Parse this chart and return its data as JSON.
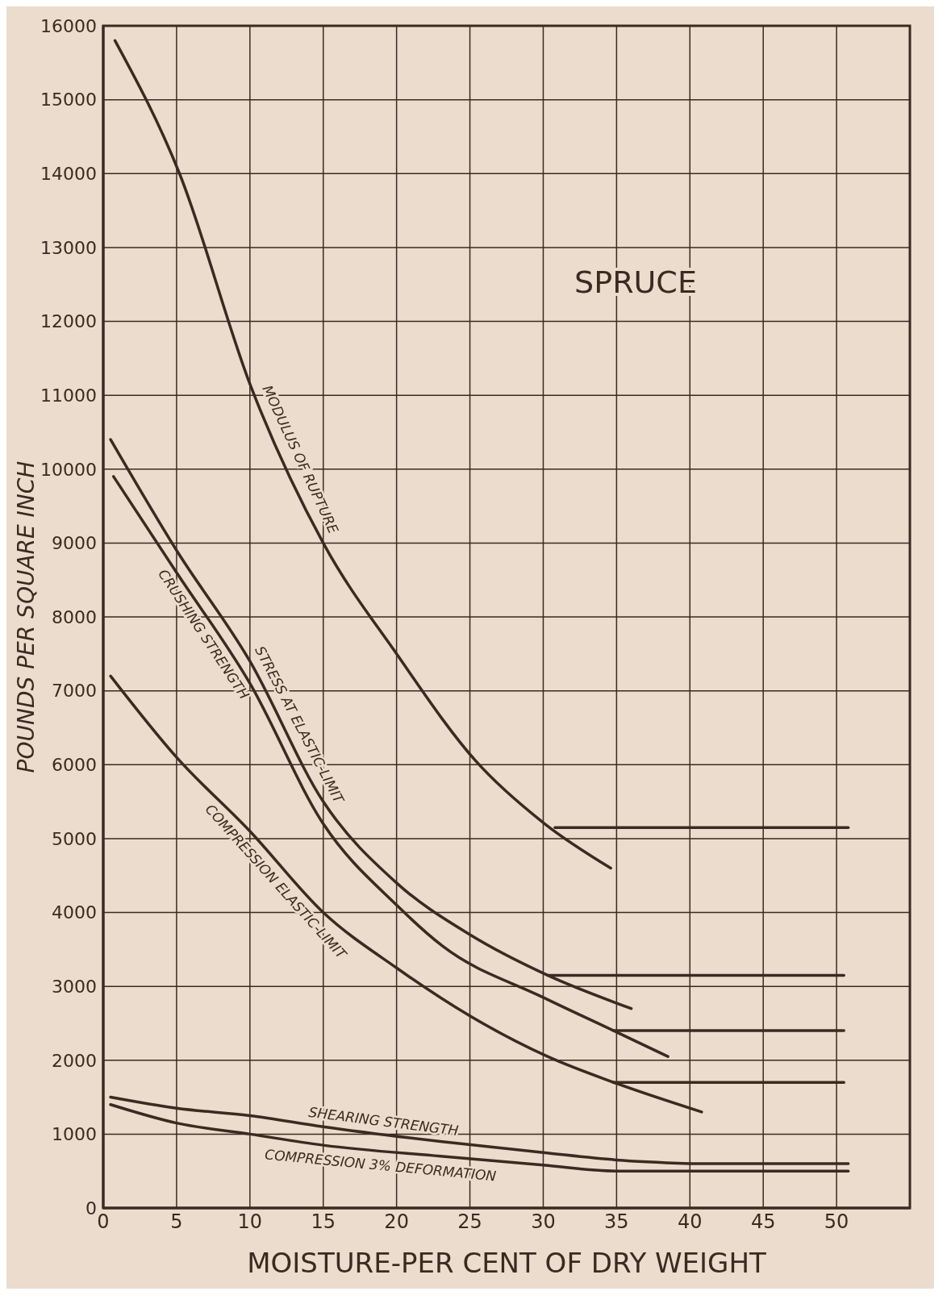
{
  "chart_data": {
    "type": "line",
    "title": "SPRUCE",
    "xlabel": "MOISTURE-PER CENT OF DRY WEIGHT",
    "ylabel": "POUNDS PER SQUARE INCH",
    "xlim": [
      0,
      55
    ],
    "xticks": [
      0,
      5,
      10,
      15,
      20,
      25,
      30,
      35,
      40,
      45,
      50
    ],
    "ylim": [
      0,
      16000
    ],
    "yticks": [
      0,
      1000,
      2000,
      3000,
      4000,
      5000,
      6000,
      7000,
      8000,
      9000,
      10000,
      11000,
      12000,
      13000,
      14000,
      15000,
      16000
    ],
    "grid": true,
    "marker": "none",
    "line_style": "solid",
    "series": [
      {
        "name": "MODULUS OF RUPTURE",
        "color": "#3a2a22",
        "x": [
          0.8,
          5.2,
          10.1,
          15,
          20,
          25.4,
          30.1,
          34.6
        ],
        "values": [
          15800,
          14000,
          11100,
          9000,
          7500,
          6050,
          5200,
          4600
        ]
      },
      {
        "color": "#3a2a22",
        "x": [
          30.8,
          50.8
        ],
        "values": [
          5150,
          5150
        ]
      },
      {
        "name": "STRESS AT ELASTIC-LIMIT",
        "color": "#3a2a22",
        "x": [
          0.5,
          5,
          10,
          15,
          20,
          25,
          30.3,
          36
        ],
        "values": [
          10400,
          8900,
          7400,
          5500,
          4400,
          3700,
          3150,
          2700
        ]
      },
      {
        "color": "#3a2a22",
        "x": [
          30.3,
          50.5
        ],
        "values": [
          3150,
          3150
        ]
      },
      {
        "name": "CRUSHING STRENGTH",
        "color": "#3a2a22",
        "x": [
          0.7,
          5,
          10,
          15,
          20,
          23.1,
          30,
          34.8,
          38.5
        ],
        "values": [
          9900,
          8600,
          7100,
          5200,
          4100,
          3550,
          2850,
          2400,
          2050
        ]
      },
      {
        "color": "#3a2a22",
        "x": [
          34.8,
          50.5
        ],
        "values": [
          2400,
          2400
        ]
      },
      {
        "name": "COMPRESSION ELASTIC-LIMIT",
        "color": "#3a2a22",
        "x": [
          0.5,
          5,
          10,
          15,
          20,
          25,
          30.3,
          34.8,
          40.8
        ],
        "values": [
          7200,
          6100,
          5100,
          4000,
          3250,
          2600,
          2050,
          1700,
          1300
        ]
      },
      {
        "color": "#3a2a22",
        "x": [
          34.8,
          50.5
        ],
        "values": [
          1700,
          1700
        ]
      },
      {
        "name": "SHEARING STRENGTH",
        "color": "#3a2a22",
        "x": [
          0.5,
          5,
          10,
          15,
          23,
          30,
          35,
          40
        ],
        "values": [
          1500,
          1350,
          1250,
          1100,
          900,
          750,
          650,
          600
        ]
      },
      {
        "color": "#3a2a22",
        "x": [
          40,
          50.8
        ],
        "values": [
          600,
          600
        ]
      },
      {
        "name": "COMPRESSION 3% DEFORMATION",
        "color": "#3a2a22",
        "x": [
          0.5,
          5,
          10,
          15,
          23,
          30,
          35,
          40
        ],
        "values": [
          1400,
          1150,
          1000,
          850,
          700,
          580,
          500,
          500
        ]
      },
      {
        "color": "#3a2a22",
        "x": [
          40,
          50.8
        ],
        "values": [
          500,
          500
        ]
      }
    ]
  }
}
